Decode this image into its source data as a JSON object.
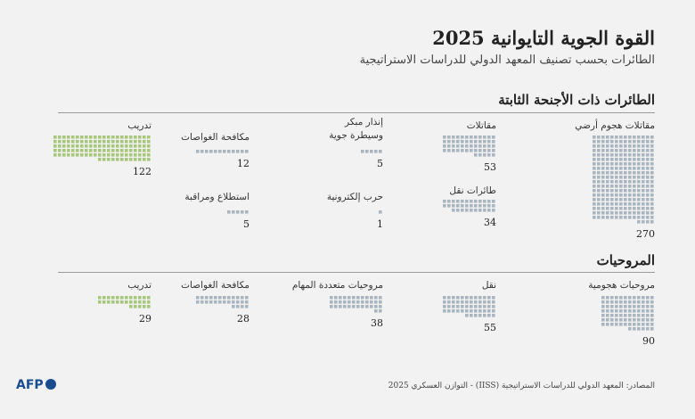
{
  "title": "القوة الجوية التايوانية 2025",
  "subtitle": "الطائرات بحسب تصنيف المعهد الدولي للدراسات الاستراتيجية",
  "chart_data": [
    {
      "type": "unit",
      "title": "الطائرات ذات الأجنحة الثابتة",
      "categories": [
        "مقاتلات هجوم أرضي",
        "مقاتلات",
        "طائرات نقل",
        "إنذار مبكر وسيطرة جوية",
        "حرب إلكترونية",
        "مكافحة الغواصات",
        "استطلاع ومراقبة",
        "تدريب"
      ],
      "values": [
        270,
        53,
        34,
        5,
        1,
        12,
        5,
        122
      ],
      "colors": [
        "#a9b6c1",
        "#a9b6c1",
        "#a9b6c1",
        "#a9b6c1",
        "#a9b6c1",
        "#a9b6c1",
        "#a9b6c1",
        "#a7c77c"
      ]
    },
    {
      "type": "unit",
      "title": "المروحيات",
      "categories": [
        "مروحيات هجومية",
        "نقل",
        "مروحيات متعددة المهام",
        "مكافحة الغواصات",
        "تدريب"
      ],
      "values": [
        90,
        55,
        38,
        28,
        29
      ],
      "colors": [
        "#a9b6c1",
        "#a9b6c1",
        "#a9b6c1",
        "#a9b6c1",
        "#a7c77c"
      ]
    }
  ],
  "source": "المصادر: المعهد الدولي للدراسات الاستراتيجية (IISS) - التوازن العسكري 2025",
  "logo": "AFP"
}
